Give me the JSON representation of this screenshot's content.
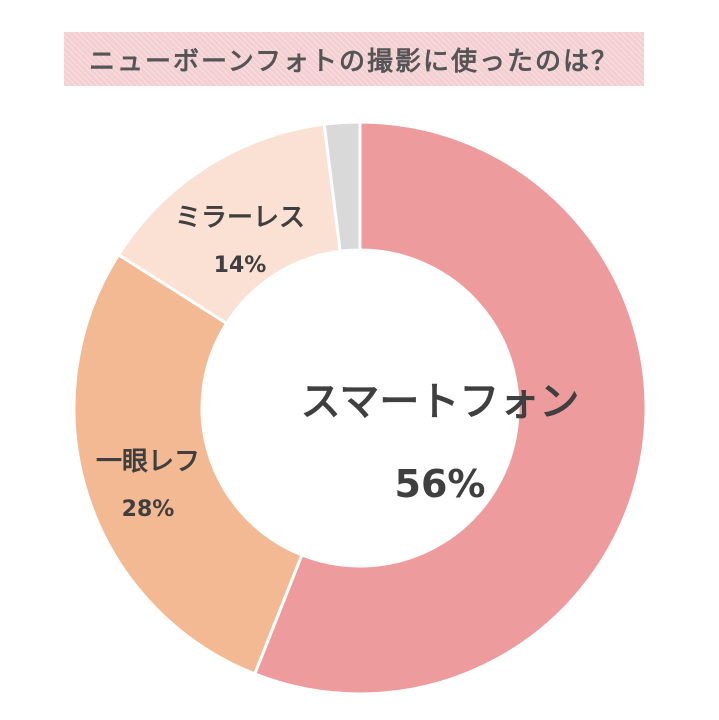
{
  "title": "ニューボーンフォトの撮影に使ったのは？",
  "chart_data": {
    "type": "pie",
    "variant": "donut",
    "title": "ニューボーンフォトの撮影に使ったのは？",
    "slices": [
      {
        "name": "スマートフォン",
        "value": 56,
        "value_label": "56%",
        "color": "#ee9b9e"
      },
      {
        "name": "一眼レフ",
        "value": 28,
        "value_label": "28%",
        "color": "#f2b992"
      },
      {
        "name": "ミラーレス",
        "value": 14,
        "value_label": "14%",
        "color": "#fbe1d3"
      },
      {
        "name": "",
        "value": 2,
        "value_label": "",
        "color": "#d9d9d9"
      }
    ],
    "start": "top",
    "direction": "clockwise",
    "legend": "none"
  }
}
